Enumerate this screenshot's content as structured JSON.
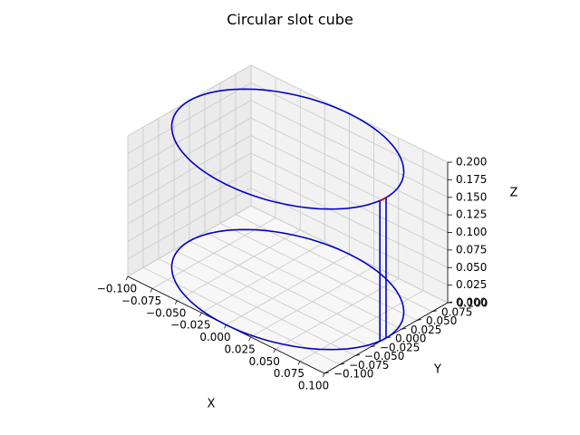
{
  "chart_data": {
    "type": "line",
    "projection": "3d",
    "title": "Circular slot cube",
    "xlabel": "X",
    "ylabel": "Y",
    "zlabel": "Z",
    "xlim": [
      -0.1,
      0.1
    ],
    "ylim": [
      -0.1,
      0.1
    ],
    "zlim": [
      0.0,
      0.2
    ],
    "x_ticks": [
      "−0.100",
      "−0.075",
      "−0.050",
      "−0.025",
      "0.000",
      "0.025",
      "0.050",
      "0.075",
      "0.100"
    ],
    "y_ticks": [
      "−0.100",
      "−0.075",
      "−0.050",
      "−0.025",
      "0.000",
      "0.025",
      "0.050",
      "0.075",
      "0.100"
    ],
    "z_ticks": [
      "0.000",
      "0.025",
      "0.050",
      "0.075",
      "0.100",
      "0.125",
      "0.150",
      "0.175",
      "0.200"
    ],
    "grid": true,
    "series": [
      {
        "color": "#0000cc",
        "elements": [
          {
            "kind": "circle",
            "center": [
              0,
              0
            ],
            "radius": 0.1,
            "z": 0.0
          },
          {
            "kind": "circle",
            "center": [
              0,
              0
            ],
            "radius": 0.1,
            "z": 0.2
          },
          {
            "kind": "segment",
            "from": [
              0.1,
              0.0,
              0.0
            ],
            "to": [
              0.1,
              0.0,
              0.2
            ]
          },
          {
            "kind": "segment",
            "from": [
              0.1,
              -0.01,
              0.0
            ],
            "to": [
              0.1,
              -0.01,
              0.2
            ]
          }
        ]
      },
      {
        "color": "#cc0000",
        "elements": [
          {
            "kind": "segment",
            "from": [
              0.1,
              0.0,
              0.2
            ],
            "to": [
              0.1,
              -0.01,
              0.2
            ]
          }
        ]
      }
    ]
  }
}
